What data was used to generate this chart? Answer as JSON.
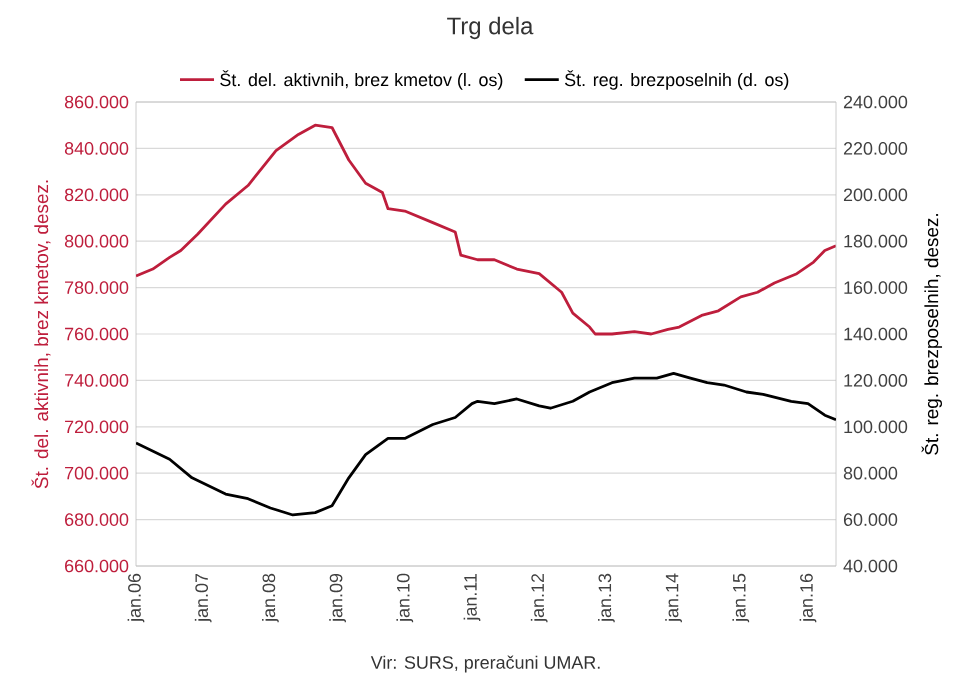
{
  "chart_data": {
    "type": "line",
    "title": "Trg dela",
    "ylabel": "Št. del. aktivnih, brez kmetov, desez.",
    "y2label": "Št. reg. brezposelnih, desez.",
    "annotations": [
      "Vir: SURS, preračuni UMAR."
    ],
    "legend": "top",
    "grid": "y",
    "xlim": [
      "2006-01",
      "2016-06"
    ],
    "xticks": [
      {
        "value": "2006-01",
        "label": "jan.06"
      },
      {
        "value": "2007-01",
        "label": "jan.07"
      },
      {
        "value": "2008-01",
        "label": "jan.08"
      },
      {
        "value": "2009-01",
        "label": "jan.09"
      },
      {
        "value": "2010-01",
        "label": "jan.10"
      },
      {
        "value": "2011-01",
        "label": "jan.11"
      },
      {
        "value": "2012-01",
        "label": "jan.12"
      },
      {
        "value": "2013-01",
        "label": "jan.13"
      },
      {
        "value": "2014-01",
        "label": "jan.14"
      },
      {
        "value": "2015-01",
        "label": "jan.15"
      },
      {
        "value": "2016-01",
        "label": "jan.16"
      }
    ],
    "ylim": [
      660000,
      860000
    ],
    "yticks": [
      {
        "value": 660000,
        "label": "660.000"
      },
      {
        "value": 680000,
        "label": "680.000"
      },
      {
        "value": 700000,
        "label": "700.000"
      },
      {
        "value": 720000,
        "label": "720.000"
      },
      {
        "value": 740000,
        "label": "740.000"
      },
      {
        "value": 760000,
        "label": "760.000"
      },
      {
        "value": 780000,
        "label": "780.000"
      },
      {
        "value": 800000,
        "label": "800.000"
      },
      {
        "value": 820000,
        "label": "820.000"
      },
      {
        "value": 840000,
        "label": "840.000"
      },
      {
        "value": 860000,
        "label": "860.000"
      }
    ],
    "y2lim": [
      40000,
      240000
    ],
    "y2ticks": [
      {
        "value": 40000,
        "label": "40.000"
      },
      {
        "value": 60000,
        "label": "60.000"
      },
      {
        "value": 80000,
        "label": "80.000"
      },
      {
        "value": 100000,
        "label": "100.000"
      },
      {
        "value": 120000,
        "label": "120.000"
      },
      {
        "value": 140000,
        "label": "140.000"
      },
      {
        "value": 160000,
        "label": "160.000"
      },
      {
        "value": 180000,
        "label": "180.000"
      },
      {
        "value": 200000,
        "label": "200.000"
      },
      {
        "value": 220000,
        "label": "220.000"
      },
      {
        "value": 240000,
        "label": "240.000"
      }
    ],
    "series": [
      {
        "name": "Št. del. aktivnih, brez kmetov (l. os)",
        "color": "#be1e3c",
        "axis": "y",
        "x": [
          "2006-01",
          "2006-04",
          "2006-07",
          "2006-09",
          "2006-12",
          "2007-05",
          "2007-09",
          "2008-02",
          "2008-06",
          "2008-09",
          "2008-12",
          "2009-03",
          "2009-06",
          "2009-09",
          "2009-10",
          "2010-01",
          "2010-06",
          "2010-10",
          "2010-11",
          "2011-02",
          "2011-05",
          "2011-09",
          "2012-01",
          "2012-05",
          "2012-07",
          "2012-10",
          "2012-11",
          "2013-02",
          "2013-06",
          "2013-09",
          "2013-12",
          "2014-02",
          "2014-06",
          "2014-09",
          "2015-01",
          "2015-04",
          "2015-07",
          "2015-11",
          "2016-02",
          "2016-04",
          "2016-06"
        ],
        "values": [
          785000,
          788000,
          793000,
          796000,
          803000,
          816000,
          824000,
          839000,
          846000,
          850000,
          849000,
          835000,
          825000,
          821000,
          814000,
          813000,
          808000,
          804000,
          794000,
          792000,
          792000,
          788000,
          786000,
          778000,
          769000,
          763000,
          760000,
          760000,
          761000,
          760000,
          762000,
          763000,
          768000,
          770000,
          776000,
          778000,
          782000,
          786000,
          791000,
          796000,
          798000
        ]
      },
      {
        "name": "Št. reg. brezposelnih (d. os)",
        "color": "#000000",
        "axis": "y2",
        "x": [
          "2006-01",
          "2006-07",
          "2006-11",
          "2007-05",
          "2007-09",
          "2008-01",
          "2008-05",
          "2008-09",
          "2008-12",
          "2009-03",
          "2009-06",
          "2009-10",
          "2010-01",
          "2010-06",
          "2010-10",
          "2011-01",
          "2011-02",
          "2011-05",
          "2011-09",
          "2012-01",
          "2012-03",
          "2012-07",
          "2012-10",
          "2013-02",
          "2013-06",
          "2013-10",
          "2014-01",
          "2014-04",
          "2014-07",
          "2014-10",
          "2015-02",
          "2015-05",
          "2015-10",
          "2016-01",
          "2016-04",
          "2016-06"
        ],
        "values": [
          93000,
          86000,
          78000,
          71000,
          69000,
          65000,
          62000,
          63000,
          66000,
          78000,
          88000,
          95000,
          95000,
          101000,
          104000,
          110000,
          111000,
          110000,
          112000,
          109000,
          108000,
          111000,
          115000,
          119000,
          121000,
          121000,
          123000,
          121000,
          119000,
          118000,
          115000,
          114000,
          111000,
          110000,
          105000,
          103000
        ]
      }
    ]
  }
}
